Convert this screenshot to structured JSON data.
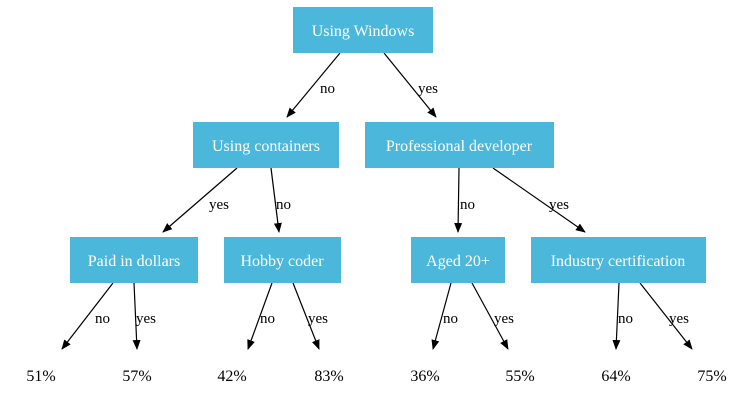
{
  "diagram": {
    "node_color": "#4bb8db",
    "nodes": {
      "root": "Using Windows",
      "containers": "Using containers",
      "professional": "Professional developer",
      "paid": "Paid in dollars",
      "hobby": "Hobby coder",
      "aged": "Aged 20+",
      "cert": "Industry certification"
    },
    "edges": {
      "root_containers": "no",
      "root_professional": "yes",
      "containers_paid": "yes",
      "containers_hobby": "no",
      "professional_aged": "no",
      "professional_cert": "yes",
      "paid_leaf1": "no",
      "paid_leaf2": "yes",
      "hobby_leaf3": "no",
      "hobby_leaf4": "yes",
      "aged_leaf5": "no",
      "aged_leaf6": "yes",
      "cert_leaf7": "no",
      "cert_leaf8": "yes"
    },
    "leaves": {
      "leaf1": "51%",
      "leaf2": "57%",
      "leaf3": "42%",
      "leaf4": "83%",
      "leaf5": "36%",
      "leaf6": "55%",
      "leaf7": "64%",
      "leaf8": "75%"
    }
  }
}
